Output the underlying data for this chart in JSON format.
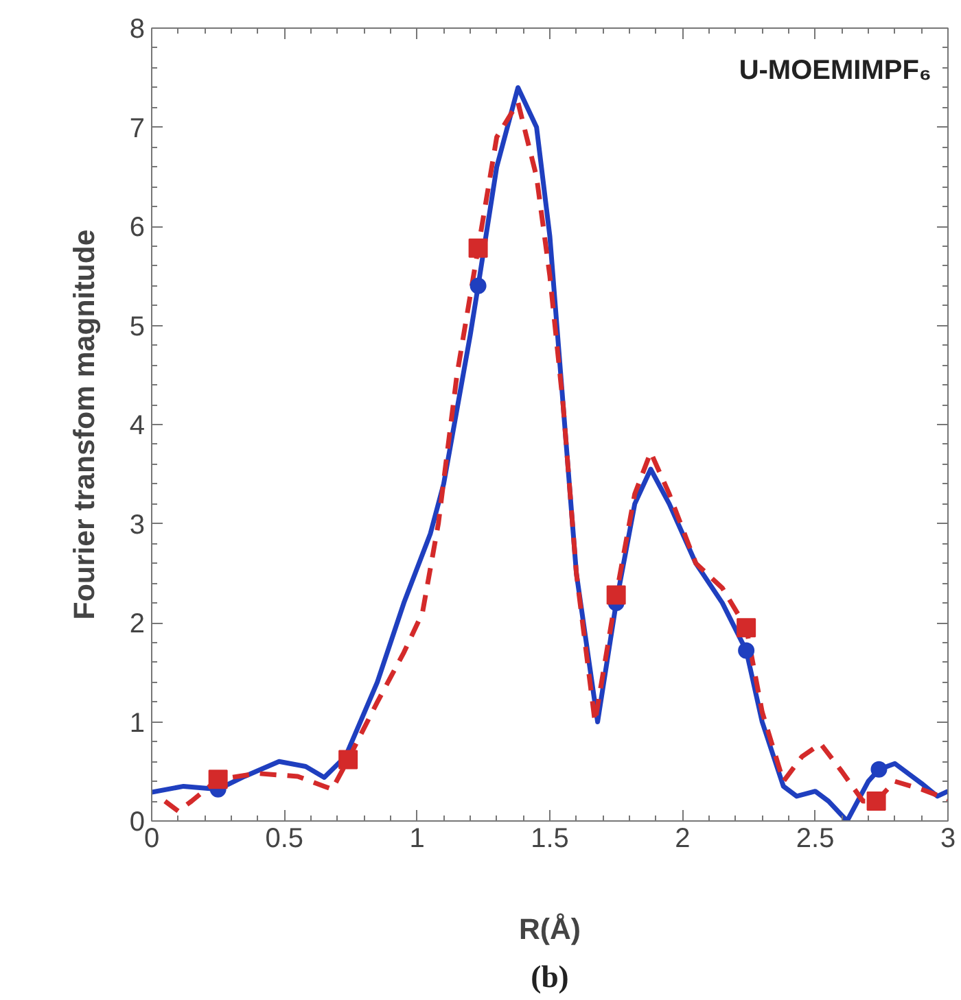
{
  "chart_data": {
    "type": "line",
    "xlabel": "R(Å)",
    "ylabel": "Fourier transfom magnitude",
    "annotations": [
      "U-MOEMIMPF₆",
      "(b)"
    ],
    "xlim": [
      0,
      3
    ],
    "ylim": [
      0,
      8
    ],
    "xticks": [
      0,
      0.5,
      1,
      1.5,
      2,
      2.5,
      3
    ],
    "yticks": [
      0,
      1,
      2,
      3,
      4,
      5,
      6,
      7,
      8
    ],
    "grid": false,
    "series": [
      {
        "color": "#1f3fbf",
        "line_style": "solid",
        "x": [
          0,
          0.12,
          0.25,
          0.35,
          0.48,
          0.58,
          0.65,
          0.73,
          0.85,
          0.95,
          1.05,
          1.1,
          1.2,
          1.23,
          1.3,
          1.38,
          1.45,
          1.5,
          1.55,
          1.6,
          1.68,
          1.75,
          1.82,
          1.88,
          1.95,
          2.05,
          2.15,
          2.24,
          2.3,
          2.38,
          2.43,
          2.5,
          2.55,
          2.62,
          2.7,
          2.74,
          2.8,
          2.9,
          2.96,
          3.0
        ],
        "values": [
          0.29,
          0.35,
          0.32,
          0.45,
          0.6,
          0.55,
          0.44,
          0.65,
          1.4,
          2.2,
          2.9,
          3.4,
          4.9,
          5.4,
          6.6,
          7.4,
          7.0,
          5.9,
          4.2,
          2.5,
          1.0,
          2.2,
          3.2,
          3.55,
          3.2,
          2.6,
          2.2,
          1.72,
          1.0,
          0.35,
          0.25,
          0.3,
          0.2,
          0.0,
          0.4,
          0.52,
          0.58,
          0.38,
          0.25,
          0.3
        ]
      },
      {
        "color": "#d42a2a",
        "line_style": "dashed",
        "x": [
          0.05,
          0.1,
          0.15,
          0.25,
          0.4,
          0.55,
          0.65,
          0.68,
          0.74,
          0.85,
          0.95,
          1.02,
          1.08,
          1.15,
          1.23,
          1.3,
          1.38,
          1.45,
          1.5,
          1.55,
          1.6,
          1.67,
          1.75,
          1.82,
          1.88,
          1.95,
          2.05,
          2.15,
          2.24,
          2.3,
          2.38,
          2.45,
          2.52,
          2.6,
          2.68,
          2.73,
          2.8,
          2.9,
          3.0
        ],
        "values": [
          0.2,
          0.1,
          0.2,
          0.42,
          0.48,
          0.45,
          0.35,
          0.32,
          0.62,
          1.2,
          1.7,
          2.1,
          3.0,
          4.5,
          5.78,
          6.9,
          7.25,
          6.5,
          5.5,
          4.2,
          2.5,
          1.0,
          2.28,
          3.3,
          3.72,
          3.3,
          2.6,
          2.35,
          1.95,
          1.1,
          0.4,
          0.65,
          0.78,
          0.5,
          0.2,
          0.2,
          0.4,
          0.32,
          0.22
        ]
      },
      {
        "type": "scatter",
        "color": "#1f3fbf",
        "marker": "circle",
        "x": [
          0.25,
          1.23,
          1.75,
          2.24,
          2.74
        ],
        "values": [
          0.32,
          5.4,
          2.2,
          1.72,
          0.52
        ]
      },
      {
        "type": "scatter",
        "color": "#d42a2a",
        "marker": "square",
        "x": [
          0.25,
          0.74,
          1.23,
          1.75,
          2.24,
          2.73
        ],
        "values": [
          0.42,
          0.62,
          5.78,
          2.28,
          1.95,
          0.2
        ]
      }
    ]
  }
}
